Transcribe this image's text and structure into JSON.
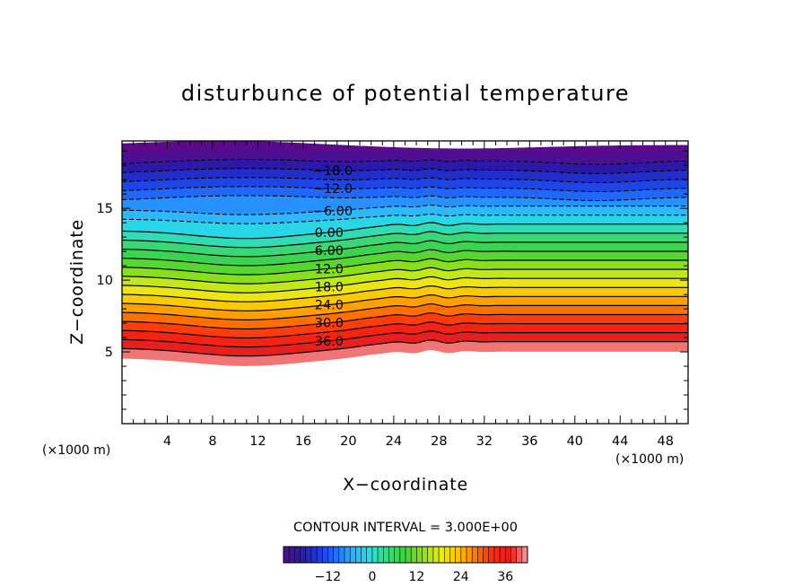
{
  "chart_data": {
    "type": "contour",
    "title": "disturbunce of potential temperature",
    "xlabel": "X−coordinate",
    "ylabel": "Z−coordinate",
    "x_unit_label": "(×1000 m)",
    "y_unit_label": "(×1000 m)",
    "xlim": [
      0,
      50
    ],
    "ylim": [
      0,
      19.7
    ],
    "x_ticks": [
      4,
      8,
      12,
      16,
      20,
      24,
      28,
      32,
      36,
      40,
      44,
      48
    ],
    "x_tick_labels": [
      "4",
      "8",
      "12",
      "16",
      "20",
      "24",
      "28",
      "32",
      "36",
      "40",
      "44",
      "48"
    ],
    "y_ticks": [
      5,
      10,
      15
    ],
    "y_tick_labels": [
      "5",
      "10",
      "15"
    ],
    "contour_interval_label": "CONTOUR INTERVAL = 3.000E+00",
    "contour_interval": 3.0,
    "value_range": [
      -24,
      42
    ],
    "color_levels": [
      -24,
      -21,
      -18,
      -15,
      -12,
      -9,
      -6,
      -3,
      0,
      3,
      6,
      9,
      12,
      15,
      18,
      21,
      24,
      27,
      30,
      33,
      36,
      39,
      42
    ],
    "colorbar_ticks": [
      -12,
      0,
      12,
      24,
      36
    ],
    "colorbar_tick_labels": [
      "−12",
      "0",
      "12",
      "24",
      "36"
    ],
    "contour_labels": [
      {
        "value": -18,
        "text": "−18.0"
      },
      {
        "value": -12,
        "text": "−12.0"
      },
      {
        "value": -6,
        "text": "−6.00"
      },
      {
        "value": 0,
        "text": "0.00"
      },
      {
        "value": 6,
        "text": "6.00"
      },
      {
        "value": 12,
        "text": "12.0"
      },
      {
        "value": 18,
        "text": "18.0"
      },
      {
        "value": 24,
        "text": "24.0"
      },
      {
        "value": 30,
        "text": "30.0"
      },
      {
        "value": 36,
        "text": "36.0"
      }
    ],
    "negative_contours_dashed": true,
    "colormap": [
      "#5a0a8a",
      "#2a1aa8",
      "#1e3ae0",
      "#1f6fff",
      "#2db2ff",
      "#28e0e0",
      "#3ad77a",
      "#3cd23c",
      "#8ee01a",
      "#e8ee1a",
      "#ffc400",
      "#ff7a00",
      "#ff2a10",
      "#e81818",
      "#f7a0a0"
    ]
  }
}
